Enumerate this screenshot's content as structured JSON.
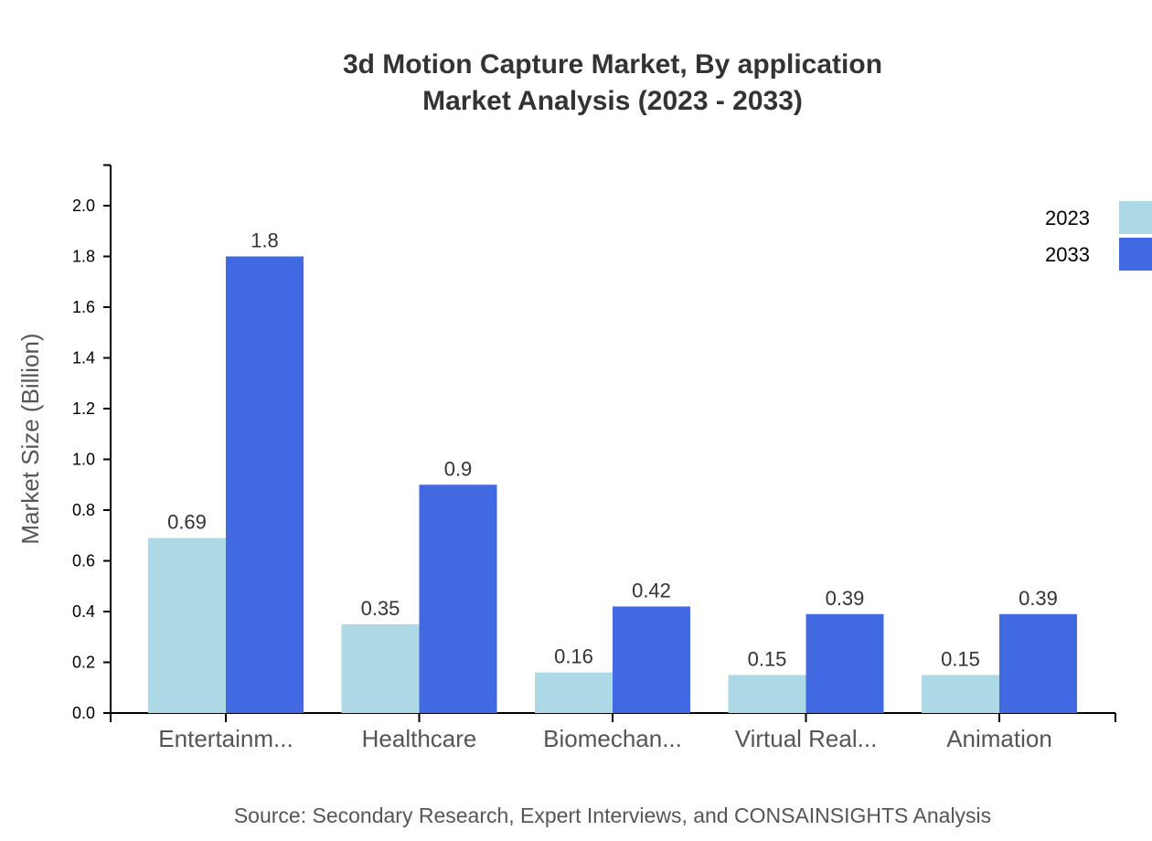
{
  "chart_data": {
    "type": "bar",
    "title": "3d Motion Capture Market, By application",
    "subtitle": "Market Analysis (2023 - 2033)",
    "xlabel": "",
    "ylabel": "Market Size (Billion)",
    "ylim": [
      0,
      2.16
    ],
    "yticks": [
      "0.0",
      "0.2",
      "0.4",
      "0.6",
      "0.8",
      "1.0",
      "1.2",
      "1.4",
      "1.6",
      "1.8",
      "2.0"
    ],
    "categories": [
      "Entertainm...",
      "Healthcare",
      "Biomechan...",
      "Virtual Real...",
      "Animation"
    ],
    "series": [
      {
        "name": "2023",
        "color": "#add8e6",
        "values": [
          0.69,
          0.35,
          0.16,
          0.15,
          0.15
        ]
      },
      {
        "name": "2033",
        "color": "#4169e1",
        "values": [
          1.8,
          0.9,
          0.42,
          0.39,
          0.39
        ]
      }
    ],
    "legend_position": "top-right",
    "grid": false,
    "source": "Source: Secondary Research, Expert Interviews, and CONSAINSIGHTS Analysis"
  }
}
